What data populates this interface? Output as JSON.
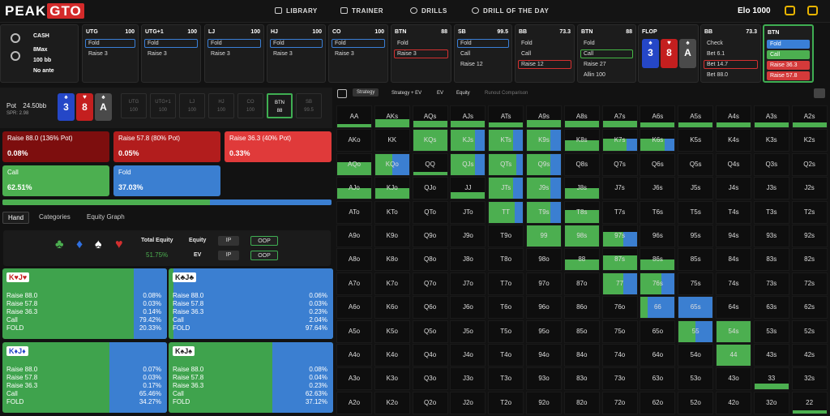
{
  "brand": {
    "logo_a": "PEAK",
    "logo_b": "GTO"
  },
  "nav": {
    "library": "LIBRARY",
    "trainer": "TRAINER",
    "drills": "DRILLS",
    "drill_day": "DRILL OF THE DAY",
    "elo": "Elo 1000"
  },
  "game": {
    "type": "CASH",
    "players": "8Max",
    "stack": "100 bb",
    "ante": "No ante"
  },
  "action_columns": [
    {
      "pos": "UTG",
      "stack": "100",
      "rows": [
        "Fold",
        "Raise 3"
      ],
      "sel": 0
    },
    {
      "pos": "UTG+1",
      "stack": "100",
      "rows": [
        "Fold",
        "Raise 3"
      ],
      "sel": 0
    },
    {
      "pos": "LJ",
      "stack": "100",
      "rows": [
        "Fold",
        "Raise 3"
      ],
      "sel": 0
    },
    {
      "pos": "HJ",
      "stack": "100",
      "rows": [
        "Fold",
        "Raise 3"
      ],
      "sel": 0
    },
    {
      "pos": "CO",
      "stack": "100",
      "rows": [
        "Fold",
        "Raise 3"
      ],
      "sel": 0
    },
    {
      "pos": "BTN",
      "stack": "88",
      "rows": [
        "Fold",
        "Raise 3"
      ],
      "sel": 1
    },
    {
      "pos": "SB",
      "stack": "99.5",
      "rows": [
        "Fold",
        "Call",
        "Raise 12"
      ],
      "sel": 0
    },
    {
      "pos": "BB",
      "stack": "73.3",
      "rows": [
        "Fold",
        "Call",
        "Raise 12"
      ],
      "sel": 2
    },
    {
      "pos": "BTN",
      "stack": "88",
      "rows": [
        "Fold",
        "Call",
        "Raise 27",
        "Allin 100"
      ],
      "sel": 1
    },
    {
      "pos": "BB",
      "stack": "73.3",
      "rows": [
        "Check",
        "Bet 6.1",
        "Bet 14.7",
        "Bet 88.0"
      ],
      "sel": 2
    },
    {
      "pos": "BTN",
      "stack": "",
      "rows": [
        "Fold",
        "Call",
        "Raise 36.3",
        "Raise 57.8"
      ],
      "sel": -1
    }
  ],
  "flop": {
    "label": "FLOP",
    "cards": [
      {
        "r": "3",
        "s": "♠"
      },
      {
        "r": "8",
        "s": "♥"
      },
      {
        "r": "A",
        "s": "♠"
      }
    ]
  },
  "pot": {
    "label": "Pot",
    "value": "24.50bb",
    "spr": "SPR: 2.98"
  },
  "seats": [
    {
      "p": "UTG",
      "v": "100"
    },
    {
      "p": "UTG+1",
      "v": "100"
    },
    {
      "p": "LJ",
      "v": "100"
    },
    {
      "p": "HJ",
      "v": "100"
    },
    {
      "p": "CO",
      "v": "100"
    },
    {
      "p": "BTN",
      "v": "88"
    },
    {
      "p": "SB",
      "v": "99.5"
    }
  ],
  "actions": {
    "a1": {
      "label": "Raise 88.0 (136% Pot)",
      "freq": "0.08%"
    },
    "a2": {
      "label": "Raise 57.8 (80% Pot)",
      "freq": "0.05%"
    },
    "a3": {
      "label": "Raise 36.3 (40% Pot)",
      "freq": "0.33%"
    },
    "a4": {
      "label": "Call",
      "freq": "62.51%"
    },
    "a5": {
      "label": "Fold",
      "freq": "37.03%"
    }
  },
  "tabs": {
    "hand": "Hand",
    "categories": "Categories",
    "graph": "Equity Graph"
  },
  "equity": {
    "total_label": "Total Equity",
    "total": "51.75%",
    "eq": "Equity",
    "ev": "EV",
    "ip": "IP",
    "oop": "OOP"
  },
  "combos": [
    {
      "hand": "K♥J♥",
      "rows": [
        [
          "Raise 88.0",
          "0.08%"
        ],
        [
          "Raise 57.8",
          "0.03%"
        ],
        [
          "Raise 36.3",
          "0.14%"
        ],
        [
          "Call",
          "79.42%"
        ],
        [
          "FOLD",
          "20.33%"
        ]
      ],
      "blue": 0.2
    },
    {
      "hand": "K♣J♣",
      "rows": [
        [
          "Raise 88.0",
          "0.06%"
        ],
        [
          "Raise 57.8",
          "0.03%"
        ],
        [
          "Raise 36.3",
          "0.23%"
        ],
        [
          "Call",
          "2.04%"
        ],
        [
          "FOLD",
          "97.64%"
        ]
      ],
      "blue": 0.97
    },
    {
      "hand": "K♦J♦",
      "rows": [
        [
          "Raise 88.0",
          "0.07%"
        ],
        [
          "Raise 57.8",
          "0.03%"
        ],
        [
          "Raise 36.3",
          "0.17%"
        ],
        [
          "Call",
          "65.46%"
        ],
        [
          "FOLD",
          "34.27%"
        ]
      ],
      "blue": 0.35
    },
    {
      "hand": "K♠J♠",
      "rows": [
        [
          "Raise 88.0",
          "0.08%"
        ],
        [
          "Raise 57.8",
          "0.04%"
        ],
        [
          "Raise 36.3",
          "0.23%"
        ],
        [
          "Call",
          "62.63%"
        ],
        [
          "FOLD",
          "37.12%"
        ]
      ],
      "blue": 0.37
    }
  ],
  "grid_tabs": {
    "strategy": "Strategy",
    "sev": "Strategy + EV",
    "ev": "EV",
    "equity": "Equity",
    "runout": "Runout Comparison"
  },
  "ranks": [
    "A",
    "K",
    "Q",
    "J",
    "T",
    "9",
    "8",
    "7",
    "6",
    "5",
    "4",
    "3",
    "2"
  ],
  "grid_fill": [
    [
      0.15,
      0.4,
      0.3,
      0.3,
      0.25,
      0.35,
      0.3,
      0.3,
      0.25,
      0.25,
      0.25,
      0.25,
      0.25
    ],
    [
      0,
      0,
      1,
      1,
      1,
      1,
      0.5,
      0.6,
      0.6,
      0,
      0,
      0,
      0
    ],
    [
      0.6,
      1,
      0.15,
      1,
      1,
      1,
      0,
      0,
      0,
      0,
      0,
      0,
      0
    ],
    [
      0.5,
      0.5,
      0,
      0.3,
      1,
      1,
      0.5,
      0,
      0,
      0,
      0,
      0,
      0
    ],
    [
      0,
      0,
      0,
      0,
      1,
      1,
      0.6,
      0,
      0,
      0,
      0,
      0,
      0
    ],
    [
      0,
      0,
      0,
      0,
      0,
      1,
      1,
      0.7,
      0,
      0,
      0,
      0,
      0
    ],
    [
      0,
      0,
      0,
      0,
      0,
      0,
      0.5,
      0.7,
      0.5,
      0,
      0,
      0,
      0
    ],
    [
      0,
      0,
      0,
      0,
      0,
      0,
      0,
      1,
      1,
      0,
      0,
      0,
      0
    ],
    [
      0,
      0,
      0,
      0,
      0,
      0,
      0,
      0,
      1,
      1,
      0,
      0,
      0
    ],
    [
      0,
      0,
      0,
      0,
      0,
      0,
      0,
      0,
      0,
      1,
      1,
      0,
      0
    ],
    [
      0,
      0,
      0,
      0,
      0,
      0,
      0,
      0,
      0,
      0,
      1,
      0,
      0
    ],
    [
      0,
      0,
      0,
      0,
      0,
      0,
      0,
      0,
      0,
      0,
      0,
      0.3,
      0
    ],
    [
      0,
      0,
      0,
      0,
      0,
      0,
      0,
      0,
      0,
      0,
      0,
      0,
      0.15
    ]
  ],
  "grid_blue": [
    [
      0,
      0,
      0,
      0,
      0,
      0,
      0,
      0,
      0,
      0,
      0,
      0,
      0
    ],
    [
      0,
      0,
      0,
      0.3,
      0.3,
      0.3,
      0,
      0.3,
      0.3,
      0,
      0,
      0,
      0
    ],
    [
      0,
      0.5,
      0,
      0.3,
      0.2,
      0.3,
      0,
      0,
      0,
      0,
      0,
      0,
      0
    ],
    [
      0,
      0,
      0,
      0,
      0.3,
      0.3,
      0,
      0,
      0,
      0,
      0,
      0,
      0
    ],
    [
      0,
      0,
      0,
      0,
      0.25,
      0.3,
      0,
      0,
      0,
      0,
      0,
      0,
      0
    ],
    [
      0,
      0,
      0,
      0,
      0,
      0,
      0,
      0.4,
      0,
      0,
      0,
      0,
      0
    ],
    [
      0,
      0,
      0,
      0,
      0,
      0,
      0,
      0,
      0,
      0,
      0,
      0,
      0
    ],
    [
      0,
      0,
      0,
      0,
      0,
      0,
      0,
      0.4,
      0.4,
      0,
      0,
      0,
      0
    ],
    [
      0,
      0,
      0,
      0,
      0,
      0,
      0,
      0,
      0.8,
      1,
      0,
      0,
      0
    ],
    [
      0,
      0,
      0,
      0,
      0,
      0,
      0,
      0,
      0,
      0.5,
      0,
      0,
      0
    ],
    [
      0,
      0,
      0,
      0,
      0,
      0,
      0,
      0,
      0,
      0,
      0,
      0,
      0
    ],
    [
      0,
      0,
      0,
      0,
      0,
      0,
      0,
      0,
      0,
      0,
      0,
      0,
      0
    ],
    [
      0,
      0,
      0,
      0,
      0,
      0,
      0,
      0,
      0,
      0,
      0,
      0,
      0
    ]
  ]
}
